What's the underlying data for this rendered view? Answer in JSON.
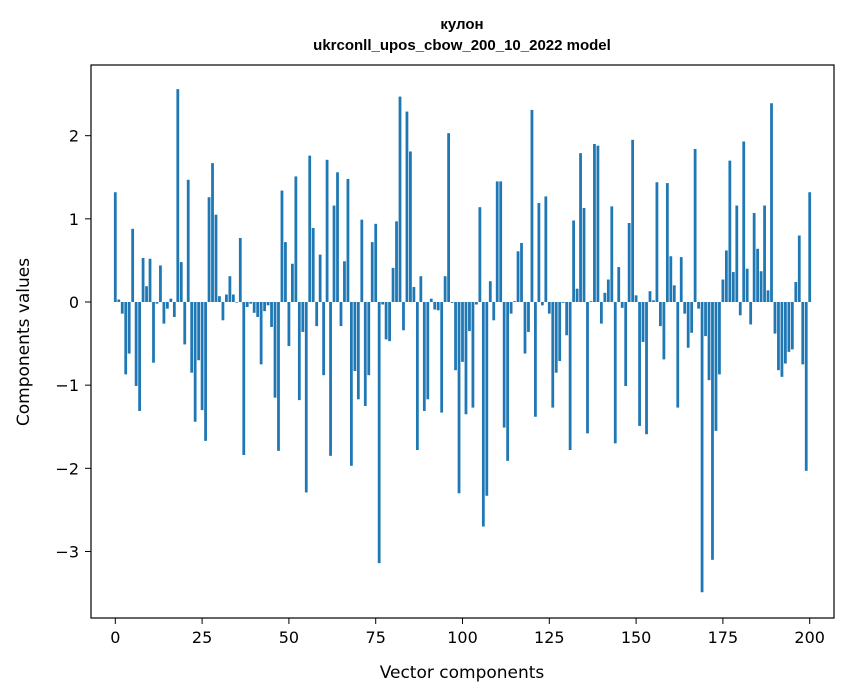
{
  "chart_data": {
    "type": "bar",
    "title": "кулон",
    "subtitle": "ukrconll_upos_cbow_200_10_2022 model",
    "xlabel": "Vector components",
    "ylabel": "Components values",
    "xlim": [
      -7,
      207
    ],
    "ylim": [
      -3.8,
      2.85
    ],
    "xticks": [
      0,
      25,
      50,
      75,
      100,
      125,
      150,
      175,
      200
    ],
    "yticks": [
      -3,
      -2,
      -1,
      0,
      1,
      2
    ],
    "bar_color": "#1f77b4",
    "values": [
      1.32,
      0.03,
      -0.14,
      -0.87,
      -0.62,
      0.88,
      -1.01,
      -1.31,
      0.53,
      0.19,
      0.52,
      -0.73,
      -0.02,
      0.44,
      -0.26,
      -0.08,
      0.04,
      -0.18,
      2.56,
      0.48,
      -0.51,
      1.47,
      -0.85,
      -1.44,
      -0.7,
      -1.3,
      -1.67,
      1.26,
      1.67,
      1.05,
      0.07,
      -0.22,
      0.09,
      0.31,
      0.09,
      0.0,
      0.77,
      -1.84,
      -0.06,
      -0.02,
      -0.13,
      -0.18,
      -0.75,
      -0.11,
      -0.04,
      -0.3,
      -1.15,
      -1.79,
      1.34,
      0.72,
      -0.53,
      0.46,
      1.51,
      -1.18,
      -0.36,
      -2.29,
      1.76,
      0.89,
      -0.29,
      0.57,
      -0.88,
      1.71,
      -1.85,
      1.16,
      1.56,
      -0.29,
      0.49,
      1.48,
      -1.97,
      -0.83,
      -1.17,
      0.99,
      -1.25,
      -0.88,
      0.72,
      0.94,
      -3.14,
      -0.03,
      -0.45,
      -0.47,
      0.41,
      0.97,
      2.47,
      -0.34,
      2.29,
      1.81,
      0.18,
      -1.78,
      0.31,
      -1.31,
      -1.17,
      0.04,
      -0.09,
      -0.1,
      -1.33,
      0.31,
      2.03,
      -0.01,
      -0.82,
      -2.3,
      -0.72,
      -1.35,
      -0.35,
      -1.27,
      -0.03,
      1.14,
      -2.7,
      -2.33,
      0.25,
      -0.22,
      1.45,
      1.45,
      -1.51,
      -1.91,
      -0.14,
      0.01,
      0.61,
      0.71,
      -0.62,
      -0.36,
      2.31,
      -1.38,
      1.19,
      -0.04,
      1.27,
      -0.14,
      -1.27,
      -0.85,
      -0.71,
      -0.01,
      -0.4,
      -1.78,
      0.98,
      0.16,
      1.79,
      1.13,
      -1.58,
      0.01,
      1.9,
      1.88,
      -0.26,
      0.11,
      0.27,
      1.15,
      -1.7,
      0.42,
      -0.07,
      -1.01,
      0.95,
      1.95,
      0.08,
      -1.49,
      -0.48,
      -1.59,
      0.13,
      0.02,
      1.44,
      -0.29,
      -0.69,
      1.43,
      0.55,
      0.2,
      -1.27,
      0.54,
      -0.14,
      -0.55,
      -0.37,
      1.84,
      -0.08,
      -3.49,
      -0.41,
      -0.94,
      -3.1,
      -1.55,
      -0.87,
      0.27,
      0.62,
      1.7,
      0.36,
      1.16,
      -0.16,
      1.93,
      0.4,
      -0.27,
      1.07,
      0.64,
      0.37,
      1.16,
      0.14,
      2.39,
      -0.38,
      -0.82,
      -0.9,
      -0.74,
      -0.6,
      -0.57,
      0.24,
      0.8,
      -0.75,
      -2.03,
      1.32
    ]
  }
}
